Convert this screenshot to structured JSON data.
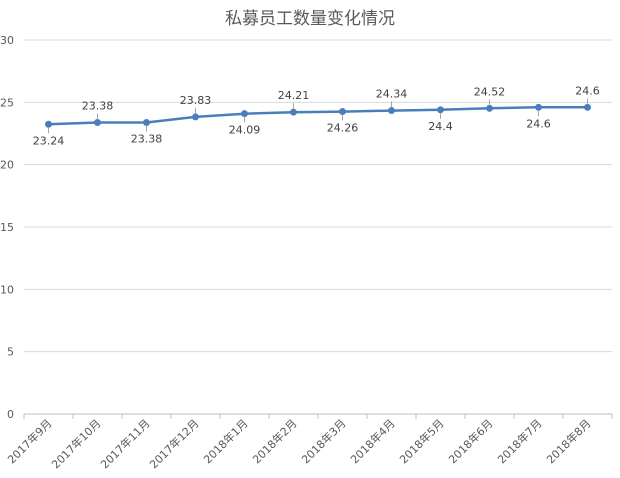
{
  "chart_data": {
    "type": "line",
    "title": "私募员工数量变化情况",
    "xlabel": "",
    "ylabel": "",
    "ylim": [
      0,
      30
    ],
    "yticks": [
      0,
      5,
      10,
      15,
      20,
      25,
      30
    ],
    "grid": true,
    "legend": "none",
    "categories": [
      "2017年9月",
      "2017年10月",
      "2017年11月",
      "2017年12月",
      "2018年1月",
      "2018年2月",
      "2018年3月",
      "2018年4月",
      "2018年5月",
      "2018年6月",
      "2018年7月",
      "2018年8月"
    ],
    "series": [
      {
        "values": [
          23.24,
          23.38,
          23.38,
          23.83,
          24.09,
          24.21,
          24.26,
          24.34,
          24.4,
          24.52,
          24.6,
          24.6
        ],
        "labels": [
          "23.24",
          "23.38",
          "23.38",
          "23.83",
          "24.09",
          "24.21",
          "24.26",
          "24.34",
          "24.4",
          "24.52",
          "24.6",
          "24.6"
        ],
        "label_positions": [
          "below",
          "above",
          "below",
          "above",
          "below",
          "above",
          "below",
          "above",
          "below",
          "above",
          "below",
          "above"
        ],
        "color": "#4a7ebb"
      }
    ]
  }
}
